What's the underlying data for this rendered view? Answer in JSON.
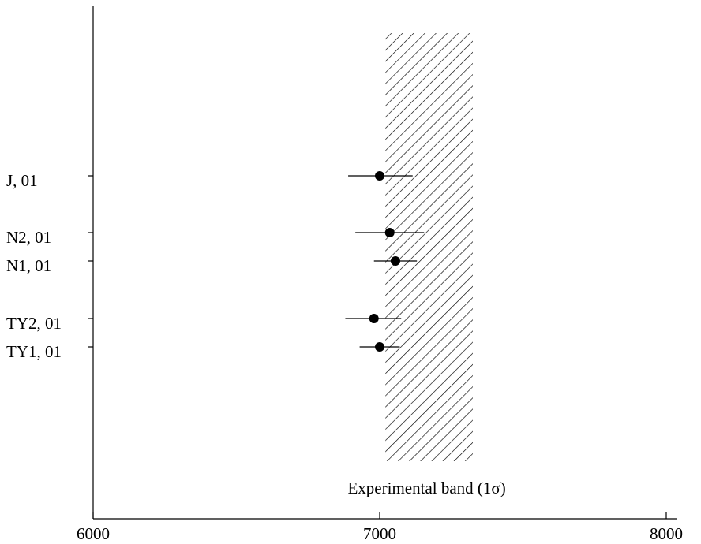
{
  "chart_data": {
    "type": "scatter",
    "title": "",
    "xlabel": "",
    "ylabel": "",
    "xlim": [
      6000,
      8100
    ],
    "x_ticks": [
      6000,
      7000,
      8000
    ],
    "x_tick_labels": [
      "6000",
      "7000",
      "8000"
    ],
    "grid": false,
    "points": [
      {
        "label": "J, 01",
        "value": 7000,
        "err_low": 7000,
        "err_lo_bound": 6890,
        "err_hi_bound": 7115
      },
      {
        "label": "N2, 01",
        "value": 7035,
        "err_lo_bound": 6915,
        "err_hi_bound": 7155
      },
      {
        "label": "N1, 01",
        "value": 7055,
        "err_lo_bound": 6980,
        "err_hi_bound": 7130
      },
      {
        "label": "TY2, 01",
        "value": 6980,
        "err_lo_bound": 6880,
        "err_hi_bound": 7075
      },
      {
        "label": "TY1, 01",
        "value": 7000,
        "err_lo_bound": 6930,
        "err_hi_bound": 7070
      }
    ],
    "band": {
      "x_min": 7020,
      "x_max": 7325,
      "label": "Experimental band (1σ)"
    },
    "colors": {
      "marker": "#000000",
      "axis": "#000000",
      "hatch": "#000000"
    }
  }
}
